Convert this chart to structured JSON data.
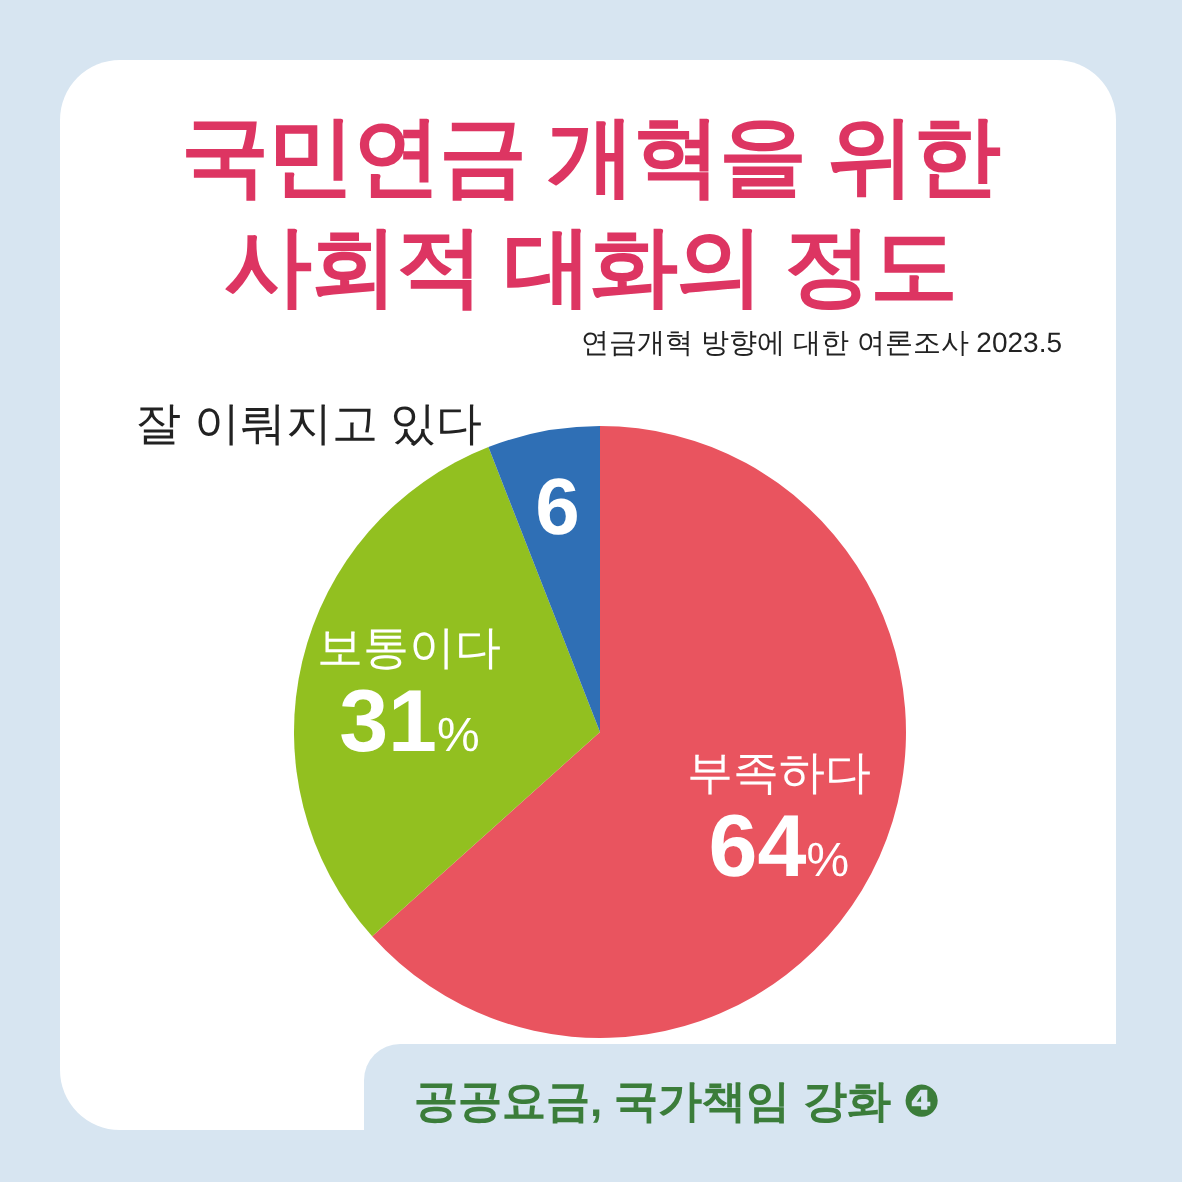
{
  "chart_data": {
    "type": "pie",
    "title": "국민연금 개혁을 위한 사회적 대화의 정도",
    "subtitle": "연금개혁 방향에 대한 여론조사 2023.5",
    "categories": [
      "부족하다",
      "보통이다",
      "잘 이뤄지고 있다"
    ],
    "values": [
      64,
      31,
      6
    ],
    "colors": [
      "#e9545f",
      "#92c020",
      "#2f6fb5"
    ],
    "value_labels": [
      "64%",
      "31%",
      "6"
    ],
    "annotations": [
      "공공요금, 국가책임 강화 ❹"
    ]
  }
}
